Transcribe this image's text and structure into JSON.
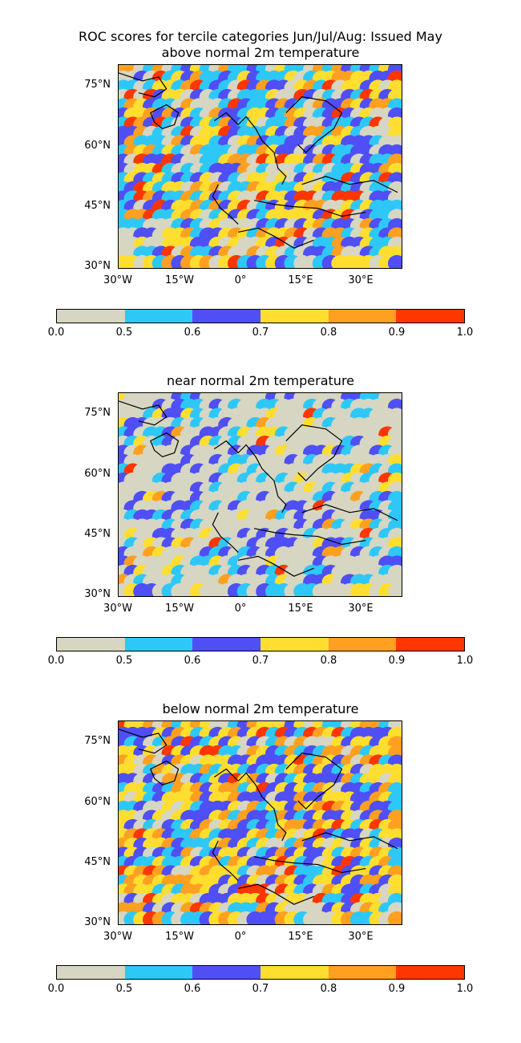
{
  "figure": {
    "suptitle_line1": "ROC scores for tercile categories Jun/Jul/Aug: Issued May",
    "colors": [
      "#d6d6c2",
      "#2ec8f8",
      "#4f4ff5",
      "#ffde30",
      "#ffa020",
      "#ff3600"
    ],
    "boundaries": [
      "0.0",
      "0.5",
      "0.6",
      "0.7",
      "0.8",
      "0.9",
      "1.0"
    ],
    "lat_labels": [
      "75°N",
      "60°N",
      "45°N",
      "30°N"
    ],
    "lon_labels": [
      "30°W",
      "15°W",
      "0°",
      "15°E",
      "30°E"
    ]
  },
  "panels": [
    {
      "title": "above normal 2m temperature"
    },
    {
      "title": "near normal 2m temperature"
    },
    {
      "title": "below normal 2m temperature"
    }
  ]
}
